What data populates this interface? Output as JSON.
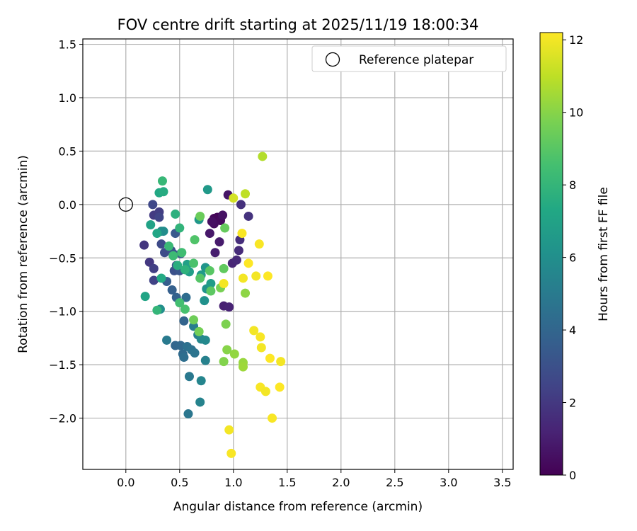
{
  "chart_data": {
    "type": "scatter",
    "title": "FOV centre drift starting at 2025/11/19 18:00:34",
    "xlabel": "Angular distance from reference (arcmin)",
    "ylabel": "Rotation from reference (arcmin)",
    "xlim": [
      -0.4,
      3.6
    ],
    "ylim": [
      -2.48,
      1.55
    ],
    "xticks": [
      0.0,
      0.5,
      1.0,
      1.5,
      2.0,
      2.5,
      3.0,
      3.5
    ],
    "yticks": [
      1.5,
      1.0,
      0.5,
      0.0,
      -0.5,
      -1.0,
      -1.5,
      -2.0
    ],
    "xtick_labels": [
      "0.0",
      "0.5",
      "1.0",
      "1.5",
      "2.0",
      "2.5",
      "3.0",
      "3.5"
    ],
    "ytick_labels": [
      "1.5",
      "1.0",
      "0.5",
      "0.0",
      "−0.5",
      "−1.0",
      "−1.5",
      "−2.0"
    ],
    "grid": true,
    "legend": {
      "position": "top-right",
      "entries": [
        "Reference platepar"
      ]
    },
    "reference_point": {
      "x": 0.0,
      "y": 0.0,
      "label": "Reference platepar"
    },
    "colorbar": {
      "label": "Hours from first FF file",
      "min": 0,
      "max": 12.2,
      "ticks": [
        0,
        2,
        4,
        6,
        8,
        10,
        12
      ],
      "tick_labels": [
        "0",
        "2",
        "4",
        "6",
        "8",
        "10",
        "12"
      ],
      "colormap": "viridis"
    },
    "points": [
      {
        "x": 0.85,
        "y": -0.12,
        "h": 0.1
      },
      {
        "x": 0.82,
        "y": -0.13,
        "h": 0.2
      },
      {
        "x": 0.88,
        "y": -0.15,
        "h": 0.3
      },
      {
        "x": 0.82,
        "y": -0.18,
        "h": 0.4
      },
      {
        "x": 0.8,
        "y": -0.16,
        "h": 0.5
      },
      {
        "x": 0.9,
        "y": -0.1,
        "h": 0.6
      },
      {
        "x": 0.95,
        "y": 0.09,
        "h": 0.7
      },
      {
        "x": 0.78,
        "y": -0.27,
        "h": 0.8
      },
      {
        "x": 0.87,
        "y": -0.35,
        "h": 0.9
      },
      {
        "x": 0.83,
        "y": -0.45,
        "h": 1.0
      },
      {
        "x": 0.91,
        "y": -0.95,
        "h": 1.1
      },
      {
        "x": 0.96,
        "y": -0.96,
        "h": 1.2
      },
      {
        "x": 0.99,
        "y": -0.55,
        "h": 1.3
      },
      {
        "x": 1.03,
        "y": -0.52,
        "h": 1.4
      },
      {
        "x": 1.05,
        "y": -0.43,
        "h": 1.5
      },
      {
        "x": 1.06,
        "y": -0.33,
        "h": 1.6
      },
      {
        "x": 1.07,
        "y": 0.0,
        "h": 1.7
      },
      {
        "x": 1.14,
        "y": -0.11,
        "h": 1.8
      },
      {
        "x": 0.17,
        "y": -0.38,
        "h": 1.9
      },
      {
        "x": 0.22,
        "y": -0.54,
        "h": 2.0
      },
      {
        "x": 0.26,
        "y": -0.1,
        "h": 2.1
      },
      {
        "x": 0.31,
        "y": -0.07,
        "h": 2.2
      },
      {
        "x": 0.26,
        "y": -0.6,
        "h": 2.3
      },
      {
        "x": 0.26,
        "y": -0.71,
        "h": 2.4
      },
      {
        "x": 0.31,
        "y": -0.12,
        "h": 2.5
      },
      {
        "x": 0.25,
        "y": 0.0,
        "h": 2.6
      },
      {
        "x": 0.33,
        "y": -0.37,
        "h": 2.7
      },
      {
        "x": 0.36,
        "y": -0.45,
        "h": 2.8
      },
      {
        "x": 0.42,
        "y": -0.43,
        "h": 2.9
      },
      {
        "x": 0.45,
        "y": -0.62,
        "h": 3.0
      },
      {
        "x": 0.47,
        "y": -0.57,
        "h": 3.1
      },
      {
        "x": 0.5,
        "y": -0.62,
        "h": 3.2
      },
      {
        "x": 0.44,
        "y": -0.46,
        "h": 3.3
      },
      {
        "x": 0.46,
        "y": -0.27,
        "h": 3.4
      },
      {
        "x": 0.51,
        "y": -0.46,
        "h": 3.5
      },
      {
        "x": 0.38,
        "y": -0.72,
        "h": 3.6
      },
      {
        "x": 0.43,
        "y": -0.8,
        "h": 3.7
      },
      {
        "x": 0.47,
        "y": -0.87,
        "h": 3.8
      },
      {
        "x": 0.54,
        "y": -1.09,
        "h": 3.9
      },
      {
        "x": 0.46,
        "y": -1.32,
        "h": 4.0
      },
      {
        "x": 0.51,
        "y": -1.32,
        "h": 4.1
      },
      {
        "x": 0.53,
        "y": -1.4,
        "h": 4.2
      },
      {
        "x": 0.56,
        "y": -0.87,
        "h": 4.3
      },
      {
        "x": 0.54,
        "y": -1.43,
        "h": 4.4
      },
      {
        "x": 0.57,
        "y": -1.33,
        "h": 4.5
      },
      {
        "x": 0.61,
        "y": -1.36,
        "h": 4.6
      },
      {
        "x": 0.64,
        "y": -1.39,
        "h": 4.7
      },
      {
        "x": 0.58,
        "y": -1.96,
        "h": 4.8
      },
      {
        "x": 0.59,
        "y": -1.61,
        "h": 4.9
      },
      {
        "x": 0.38,
        "y": -1.27,
        "h": 5.0
      },
      {
        "x": 0.63,
        "y": -1.14,
        "h": 5.1
      },
      {
        "x": 0.67,
        "y": -1.22,
        "h": 5.2
      },
      {
        "x": 0.74,
        "y": -1.46,
        "h": 5.3
      },
      {
        "x": 0.69,
        "y": -1.85,
        "h": 5.4
      },
      {
        "x": 0.7,
        "y": -1.65,
        "h": 5.5
      },
      {
        "x": 0.7,
        "y": -1.26,
        "h": 5.6
      },
      {
        "x": 0.74,
        "y": -1.27,
        "h": 5.7
      },
      {
        "x": 0.33,
        "y": -0.25,
        "h": 5.8
      },
      {
        "x": 0.35,
        "y": -0.25,
        "h": 5.9
      },
      {
        "x": 0.32,
        "y": -0.98,
        "h": 6.0
      },
      {
        "x": 0.73,
        "y": -0.9,
        "h": 6.1
      },
      {
        "x": 0.75,
        "y": -0.79,
        "h": 6.2
      },
      {
        "x": 0.74,
        "y": -0.59,
        "h": 6.3
      },
      {
        "x": 0.68,
        "y": -0.14,
        "h": 6.4
      },
      {
        "x": 0.76,
        "y": 0.14,
        "h": 6.5
      },
      {
        "x": 0.7,
        "y": -0.66,
        "h": 6.6
      },
      {
        "x": 0.79,
        "y": -0.74,
        "h": 6.7
      },
      {
        "x": 0.59,
        "y": -0.63,
        "h": 6.8
      },
      {
        "x": 0.57,
        "y": -0.56,
        "h": 6.9
      },
      {
        "x": 0.23,
        "y": -0.19,
        "h": 7.0
      },
      {
        "x": 0.18,
        "y": -0.86,
        "h": 7.1
      },
      {
        "x": 0.29,
        "y": -0.27,
        "h": 7.2
      },
      {
        "x": 0.31,
        "y": 0.11,
        "h": 7.3
      },
      {
        "x": 0.33,
        "y": -0.69,
        "h": 7.4
      },
      {
        "x": 0.35,
        "y": 0.12,
        "h": 7.5
      },
      {
        "x": 0.48,
        "y": -0.57,
        "h": 7.6
      },
      {
        "x": 0.46,
        "y": -0.09,
        "h": 7.7
      },
      {
        "x": 0.55,
        "y": -0.61,
        "h": 7.8
      },
      {
        "x": 0.5,
        "y": -0.22,
        "h": 7.9
      },
      {
        "x": 0.29,
        "y": -0.99,
        "h": 8.0
      },
      {
        "x": 0.34,
        "y": 0.22,
        "h": 8.1
      },
      {
        "x": 0.4,
        "y": -0.39,
        "h": 8.2
      },
      {
        "x": 0.44,
        "y": -0.48,
        "h": 8.3
      },
      {
        "x": 0.52,
        "y": -0.45,
        "h": 8.4
      },
      {
        "x": 0.5,
        "y": -0.92,
        "h": 8.5
      },
      {
        "x": 0.55,
        "y": -0.98,
        "h": 8.6
      },
      {
        "x": 0.63,
        "y": -0.55,
        "h": 8.7
      },
      {
        "x": 0.64,
        "y": -0.33,
        "h": 8.8
      },
      {
        "x": 0.69,
        "y": -0.69,
        "h": 8.9
      },
      {
        "x": 0.78,
        "y": -0.62,
        "h": 9.0
      },
      {
        "x": 0.79,
        "y": -0.81,
        "h": 9.1
      },
      {
        "x": 0.91,
        "y": -0.6,
        "h": 9.2
      },
      {
        "x": 0.92,
        "y": -0.22,
        "h": 9.3
      },
      {
        "x": 0.69,
        "y": -0.11,
        "h": 9.4
      },
      {
        "x": 0.63,
        "y": -1.08,
        "h": 9.5
      },
      {
        "x": 0.68,
        "y": -1.19,
        "h": 9.6
      },
      {
        "x": 0.88,
        "y": -0.78,
        "h": 9.7
      },
      {
        "x": 0.93,
        "y": -1.12,
        "h": 9.8
      },
      {
        "x": 0.91,
        "y": -1.47,
        "h": 9.9
      },
      {
        "x": 0.94,
        "y": -1.36,
        "h": 10.0
      },
      {
        "x": 1.11,
        "y": -0.83,
        "h": 10.1
      },
      {
        "x": 1.01,
        "y": -1.4,
        "h": 10.2
      },
      {
        "x": 1.09,
        "y": -1.48,
        "h": 10.3
      },
      {
        "x": 1.09,
        "y": -1.52,
        "h": 10.4
      },
      {
        "x": 1.27,
        "y": 0.45,
        "h": 10.8
      },
      {
        "x": 1.11,
        "y": 0.1,
        "h": 11.0
      },
      {
        "x": 1.0,
        "y": 0.06,
        "h": 11.4
      },
      {
        "x": 0.91,
        "y": -0.74,
        "h": 12.0
      },
      {
        "x": 1.08,
        "y": -0.27,
        "h": 12.1
      },
      {
        "x": 1.09,
        "y": -0.69,
        "h": 12.0
      },
      {
        "x": 1.14,
        "y": -0.55,
        "h": 12.2
      },
      {
        "x": 1.21,
        "y": -0.67,
        "h": 12.0
      },
      {
        "x": 1.24,
        "y": -0.37,
        "h": 12.1
      },
      {
        "x": 1.32,
        "y": -0.67,
        "h": 12.2
      },
      {
        "x": 1.19,
        "y": -1.18,
        "h": 12.0
      },
      {
        "x": 1.25,
        "y": -1.24,
        "h": 12.1
      },
      {
        "x": 1.26,
        "y": -1.34,
        "h": 12.0
      },
      {
        "x": 1.34,
        "y": -1.44,
        "h": 12.2
      },
      {
        "x": 1.44,
        "y": -1.47,
        "h": 12.0
      },
      {
        "x": 1.25,
        "y": -1.71,
        "h": 12.1
      },
      {
        "x": 1.3,
        "y": -1.75,
        "h": 12.0
      },
      {
        "x": 1.43,
        "y": -1.71,
        "h": 12.2
      },
      {
        "x": 1.36,
        "y": -2.0,
        "h": 12.1
      },
      {
        "x": 0.96,
        "y": -2.11,
        "h": 12.0
      },
      {
        "x": 0.98,
        "y": -2.33,
        "h": 12.1
      }
    ]
  }
}
